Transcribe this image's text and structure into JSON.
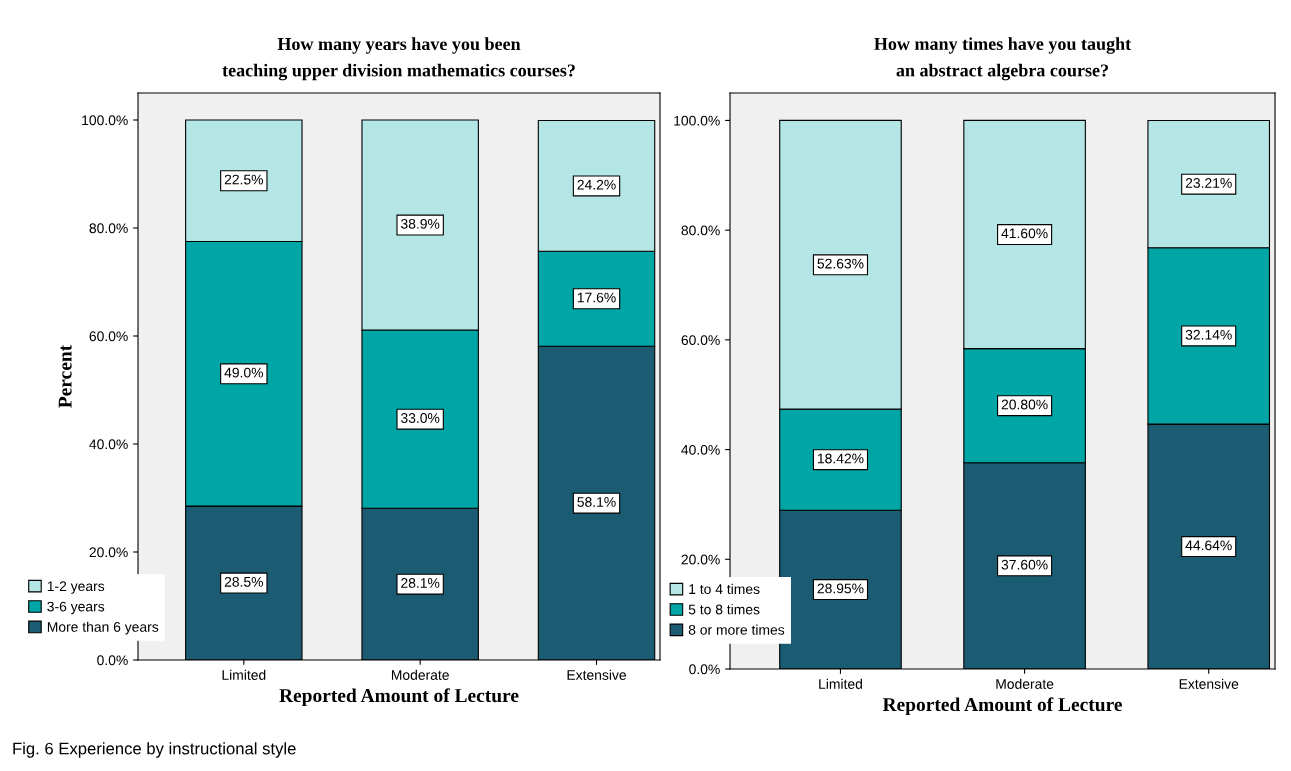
{
  "chart_data": [
    {
      "type": "bar",
      "stacked": true,
      "title": "How many years have you been\nteaching upper division mathematics courses?",
      "xlabel": "Reported Amount of Lecture",
      "ylabel": "Percent",
      "categories": [
        "Limited",
        "Moderate",
        "Extensive"
      ],
      "ylim": [
        0,
        105
      ],
      "yticks": [
        {
          "value": 0,
          "label": "0.0%"
        },
        {
          "value": 20,
          "label": "20.0%"
        },
        {
          "value": 40,
          "label": "40.0%"
        },
        {
          "value": 60,
          "label": "60.0%"
        },
        {
          "value": 80,
          "label": "80.0%"
        },
        {
          "value": 100,
          "label": "100.0%"
        }
      ],
      "grid": false,
      "legend": "bottom left",
      "series": [
        {
          "name": "More than 6 years",
          "color": "#1c5c72",
          "values": [
            28.5,
            28.1,
            58.1
          ],
          "value_labels": [
            "28.5%",
            "28.1%",
            "58.1%"
          ]
        },
        {
          "name": "3-6 years",
          "color": "#00a5a5",
          "values": [
            49.0,
            33.0,
            17.6
          ],
          "value_labels": [
            "49.0%",
            "33.0%",
            "17.6%"
          ]
        },
        {
          "name": "1-2 years",
          "color": "#b4e6e6",
          "values": [
            22.5,
            38.9,
            24.2
          ],
          "value_labels": [
            "22.5%",
            "38.9%",
            "24.2%"
          ]
        }
      ],
      "annotations": [
        "Fig. 6 Experience by instructional style"
      ]
    },
    {
      "type": "bar",
      "stacked": true,
      "title": "How many times have you taught\nan abstract algebra course?",
      "xlabel": "Reported Amount of Lecture",
      "categories": [
        "Limited",
        "Moderate",
        "Extensive"
      ],
      "ylim": [
        0,
        105
      ],
      "yticks": [
        {
          "value": 0,
          "label": "0.0%"
        },
        {
          "value": 20,
          "label": "20.0%"
        },
        {
          "value": 40,
          "label": "40.0%"
        },
        {
          "value": 60,
          "label": "60.0%"
        },
        {
          "value": 80,
          "label": "80.0%"
        },
        {
          "value": 100,
          "label": "100.0%"
        }
      ],
      "grid": false,
      "legend": "bottom left",
      "series": [
        {
          "name": "8 or more times",
          "color": "#1c5c72",
          "values": [
            28.95,
            37.6,
            44.64
          ],
          "value_labels": [
            "28.95%",
            "37.60%",
            "44.64%"
          ]
        },
        {
          "name": "5 to 8 times",
          "color": "#00a5a5",
          "values": [
            18.42,
            20.8,
            32.14
          ],
          "value_labels": [
            "18.42%",
            "20.80%",
            "32.14%"
          ]
        },
        {
          "name": "1 to 4 times",
          "color": "#b4e6e6",
          "values": [
            52.63,
            41.6,
            23.21
          ],
          "value_labels": [
            "52.63%",
            "41.60%",
            "23.21%"
          ]
        }
      ]
    }
  ]
}
